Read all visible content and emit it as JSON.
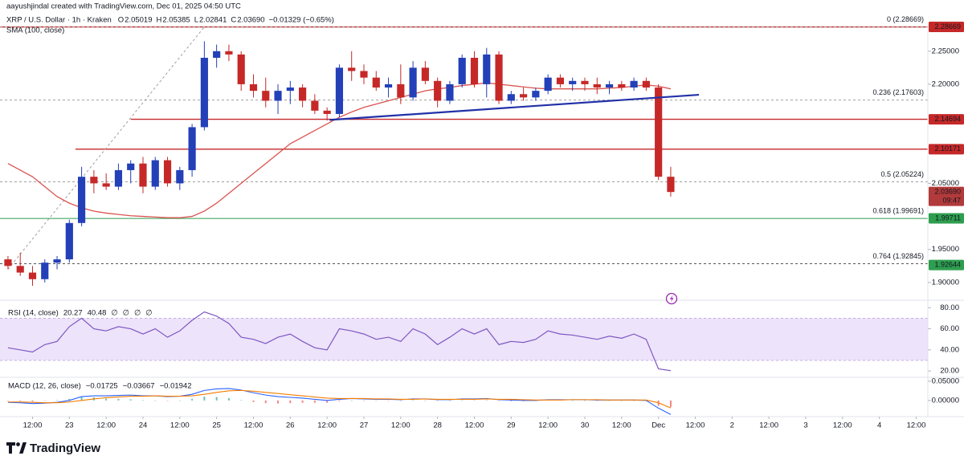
{
  "header": {
    "credit": "aayushjindal created with TradingView.com, Dec 01, 2025 04:50 UTC",
    "symbol": "XRP / U.S. Dollar · 1h · Kraken",
    "quote": [
      {
        "key": "O",
        "value": "2.05019"
      },
      {
        "key": "H",
        "value": "2.05385"
      },
      {
        "key": "L",
        "value": "2.02841"
      },
      {
        "key": "C",
        "value": "2.03690"
      }
    ],
    "change": "−0.01329 (−0.65%)"
  },
  "footer": {
    "brand": "TradingView"
  },
  "chart_data": [
    {
      "type": "candlestick",
      "up_color": "#2340b8",
      "down_color": "#c62828",
      "xlim": [
        -0.65,
        74.95
      ],
      "xticks": [
        {
          "value": 2,
          "label": "12:00"
        },
        {
          "value": 5,
          "label": "23"
        },
        {
          "value": 8,
          "label": "12:00"
        },
        {
          "value": 11,
          "label": "24"
        },
        {
          "value": 14,
          "label": "12:00"
        },
        {
          "value": 17,
          "label": "25"
        },
        {
          "value": 20,
          "label": "12:00"
        },
        {
          "value": 23,
          "label": "26"
        },
        {
          "value": 26,
          "label": "12:00"
        },
        {
          "value": 29,
          "label": "27"
        },
        {
          "value": 32,
          "label": "12:00"
        },
        {
          "value": 35,
          "label": "28"
        },
        {
          "value": 38,
          "label": "12:00"
        },
        {
          "value": 41,
          "label": "29"
        },
        {
          "value": 44,
          "label": "12:00"
        },
        {
          "value": 47,
          "label": "30"
        },
        {
          "value": 50,
          "label": "12:00"
        },
        {
          "value": 53,
          "label": "Dec"
        },
        {
          "value": 56,
          "label": "12:00"
        },
        {
          "value": 59,
          "label": "2"
        },
        {
          "value": 62,
          "label": "12:00"
        },
        {
          "value": 65,
          "label": "3"
        },
        {
          "value": 68,
          "label": "12:00"
        },
        {
          "value": 71,
          "label": "4"
        },
        {
          "value": 74,
          "label": "12:00"
        }
      ],
      "ylim": [
        1.878,
        2.291
      ],
      "yticks": [
        {
          "value": 2.25,
          "label": "2.25000"
        },
        {
          "value": 2.2,
          "label": "2.20000"
        },
        {
          "value": 2.05,
          "label": "2.05000"
        },
        {
          "value": 1.95,
          "label": "1.95000"
        },
        {
          "value": 1.9,
          "label": "1.90000"
        }
      ],
      "open": [
        1.935,
        1.925,
        1.915,
        1.905,
        1.93,
        1.935,
        1.99,
        2.06,
        2.05,
        2.045,
        2.07,
        2.08,
        2.045,
        2.085,
        2.05,
        2.07,
        2.135,
        2.24,
        2.25,
        2.245,
        2.2,
        2.19,
        2.175,
        2.19,
        2.195,
        2.175,
        2.16,
        2.155,
        2.225,
        2.22,
        2.21,
        2.195,
        2.2,
        2.18,
        2.225,
        2.205,
        2.175,
        2.2,
        2.24,
        2.2,
        2.245,
        2.175,
        2.185,
        2.18,
        2.19,
        2.21,
        2.2,
        2.205,
        2.2,
        2.195,
        2.2,
        2.195,
        2.205,
        2.195,
        2.06
      ],
      "high": [
        1.94,
        1.945,
        1.925,
        1.935,
        1.94,
        1.995,
        2.075,
        2.07,
        2.065,
        2.08,
        2.085,
        2.09,
        2.09,
        2.09,
        2.075,
        2.14,
        2.265,
        2.26,
        2.26,
        2.25,
        2.215,
        2.21,
        2.2,
        2.205,
        2.2,
        2.185,
        2.165,
        2.23,
        2.25,
        2.23,
        2.22,
        2.21,
        2.23,
        2.235,
        2.235,
        2.21,
        2.205,
        2.245,
        2.25,
        2.255,
        2.25,
        2.19,
        2.195,
        2.195,
        2.215,
        2.215,
        2.21,
        2.21,
        2.21,
        2.205,
        2.205,
        2.21,
        2.21,
        2.2,
        2.075
      ],
      "low": [
        1.92,
        1.91,
        1.895,
        1.9,
        1.92,
        1.93,
        1.985,
        2.035,
        2.04,
        2.04,
        2.05,
        2.035,
        2.04,
        2.045,
        2.04,
        2.06,
        2.13,
        2.225,
        2.235,
        2.19,
        2.18,
        2.165,
        2.155,
        2.17,
        2.165,
        2.155,
        2.145,
        2.15,
        2.205,
        2.2,
        2.19,
        2.18,
        2.17,
        2.175,
        2.2,
        2.165,
        2.17,
        2.195,
        2.195,
        2.18,
        2.17,
        2.17,
        2.175,
        2.175,
        2.185,
        2.195,
        2.19,
        2.19,
        2.185,
        2.185,
        2.19,
        2.19,
        2.19,
        2.055,
        2.03
      ],
      "close": [
        1.925,
        1.915,
        1.905,
        1.93,
        1.935,
        1.99,
        2.06,
        2.05,
        2.045,
        2.07,
        2.08,
        2.045,
        2.085,
        2.05,
        2.07,
        2.135,
        2.24,
        2.25,
        2.245,
        2.2,
        2.19,
        2.175,
        2.19,
        2.195,
        2.175,
        2.16,
        2.155,
        2.225,
        2.22,
        2.21,
        2.195,
        2.2,
        2.18,
        2.225,
        2.205,
        2.175,
        2.2,
        2.24,
        2.2,
        2.245,
        2.175,
        2.185,
        2.18,
        2.19,
        2.21,
        2.2,
        2.205,
        2.2,
        2.195,
        2.2,
        2.195,
        2.205,
        2.195,
        2.06,
        2.0369
      ],
      "series": [
        {
          "name": "SMA (100, close)",
          "color": "#d9534f",
          "values": [
            2.08,
            2.07,
            2.06,
            2.045,
            2.03,
            2.02,
            2.013,
            2.008,
            2.005,
            2.003,
            2.001,
            2.0,
            1.999,
            1.998,
            1.998,
            2.0,
            2.008,
            2.02,
            2.035,
            2.05,
            2.065,
            2.08,
            2.095,
            2.11,
            2.12,
            2.13,
            2.14,
            2.15,
            2.158,
            2.165,
            2.17,
            2.175,
            2.18,
            2.185,
            2.19,
            2.193,
            2.195,
            2.198,
            2.2,
            2.202,
            2.2,
            2.198,
            2.196,
            2.194,
            2.193,
            2.193,
            2.193,
            2.193,
            2.193,
            2.194,
            2.195,
            2.197,
            2.199,
            2.197,
            2.193
          ]
        }
      ],
      "lines": [
        {
          "value": 2.28669,
          "from": -0.65,
          "color": "#c62828"
        },
        {
          "value": 2.14694,
          "from": 10,
          "color": "#c62828"
        },
        {
          "value": 2.10171,
          "from": 5.5,
          "color": "#c62828"
        }
      ],
      "fib_levels": [
        {
          "value": 2.28669,
          "label": "0 (2.28669)",
          "color": "#9e9e9e"
        },
        {
          "value": 2.17603,
          "label": "0.236 (2.17603)",
          "color": "#9e9e9e"
        },
        {
          "value": 2.05224,
          "label": "0.5 (2.05224)",
          "color": "#9e9e9e"
        },
        {
          "value": 1.99691,
          "label": "0.618 (1.99691)",
          "color": "#2e9e4f"
        },
        {
          "value": 1.92845,
          "label": "0.764 (1.92845)",
          "color": "#555555"
        }
      ],
      "trendline": {
        "x": [
          26.2,
          56.3
        ],
        "y": [
          2.146,
          2.184
        ],
        "color": "#2231a8"
      },
      "fib_diagonal": {
        "x": [
          0,
          16
        ],
        "y": [
          1.92,
          2.28669
        ],
        "color": "#9e9e9e"
      },
      "price_labels": [
        {
          "value": 2.28669,
          "color": "#c62828"
        },
        {
          "value": 2.14694,
          "color": "#c62828"
        },
        {
          "value": 2.10171,
          "color": "#c62828"
        },
        {
          "value": 2.0369,
          "label": "2.03690",
          "sub": "09:47",
          "color": "#b23a3a"
        },
        {
          "value": 1.99711,
          "color": "#2e9e4f"
        },
        {
          "value": 1.92644,
          "color": "#2e9e4f"
        }
      ]
    },
    {
      "type": "line",
      "title": "RSI (14, close)",
      "legend": [
        {
          "text": "20.27",
          "color": "#7e57c2"
        },
        {
          "text": "40.48",
          "color": "#f5c242"
        },
        {
          "text": "∅",
          "color": "#555555"
        },
        {
          "text": "∅",
          "color": "#555555"
        },
        {
          "text": "∅",
          "color": "#555555"
        },
        {
          "text": "∅",
          "color": "#555555"
        }
      ],
      "ylim": [
        14,
        84
      ],
      "yticks": [
        {
          "value": 80,
          "label": "80.00"
        },
        {
          "value": 60,
          "label": "60.00"
        },
        {
          "value": 40,
          "label": "40.00"
        },
        {
          "value": 20,
          "label": "20.00"
        }
      ],
      "band": [
        30,
        70
      ],
      "band_color": "#ede3fa",
      "color": "#7e57c2",
      "values": [
        42,
        40,
        38,
        45,
        48,
        62,
        70,
        60,
        58,
        62,
        60,
        55,
        60,
        52,
        58,
        68,
        76,
        72,
        65,
        52,
        50,
        46,
        52,
        55,
        48,
        42,
        40,
        60,
        58,
        55,
        50,
        52,
        48,
        60,
        55,
        45,
        52,
        60,
        55,
        60,
        45,
        48,
        47,
        50,
        58,
        55,
        54,
        52,
        50,
        53,
        51,
        55,
        50,
        22,
        20.27
      ]
    },
    {
      "type": "macd",
      "title": "MACD (12, 26, close)",
      "legend": [
        {
          "text": "−0.01725",
          "color": "#c62828"
        },
        {
          "text": "−0.03667",
          "color": "#2962ff"
        },
        {
          "text": "−0.01942",
          "color": "#f57c00"
        }
      ],
      "ylim": [
        -0.04,
        0.056
      ],
      "yticks": [
        {
          "value": 0.05,
          "label": "0.05000"
        },
        {
          "value": 0,
          "label": "0.00000"
        }
      ],
      "histogram": [
        -0.001,
        -0.002,
        -0.003,
        -0.001,
        0.001,
        0.004,
        0.01,
        0.008,
        0.005,
        0.004,
        0.003,
        0.001,
        0.0,
        -0.001,
        0.0,
        0.004,
        0.01,
        0.009,
        0.006,
        0.001,
        -0.004,
        -0.007,
        -0.008,
        -0.007,
        -0.006,
        -0.006,
        -0.006,
        -0.002,
        0.0,
        -0.001,
        -0.001,
        -0.001,
        -0.001,
        0.001,
        0.0,
        -0.001,
        -0.001,
        0.001,
        0.001,
        0.001,
        -0.001,
        -0.002,
        -0.002,
        -0.001,
        0.001,
        0.001,
        0.0,
        0.0,
        -0.001,
        0.0,
        0.0,
        0.0,
        -0.001,
        -0.014,
        -0.01725
      ],
      "histogram_up_color": "#26a69a",
      "histogram_down_color": "#ef5350",
      "macd": {
        "color": "#2962ff",
        "values": [
          -0.005,
          -0.006,
          -0.008,
          -0.007,
          -0.005,
          0.0,
          0.01,
          0.012,
          0.012,
          0.013,
          0.014,
          0.012,
          0.012,
          0.01,
          0.011,
          0.016,
          0.026,
          0.03,
          0.031,
          0.027,
          0.02,
          0.014,
          0.01,
          0.008,
          0.006,
          0.003,
          0.0,
          0.003,
          0.005,
          0.004,
          0.003,
          0.003,
          0.002,
          0.004,
          0.004,
          0.002,
          0.002,
          0.004,
          0.004,
          0.005,
          0.002,
          0.001,
          0.0,
          0.0,
          0.002,
          0.002,
          0.002,
          0.002,
          0.001,
          0.001,
          0.001,
          0.001,
          0.0,
          -0.02,
          -0.03667
        ]
      },
      "signal": {
        "color": "#f57c00",
        "values": [
          -0.004,
          -0.004,
          -0.005,
          -0.006,
          -0.006,
          -0.004,
          0.0,
          0.004,
          0.007,
          0.009,
          0.011,
          0.011,
          0.012,
          0.011,
          0.011,
          0.012,
          0.016,
          0.021,
          0.025,
          0.026,
          0.024,
          0.021,
          0.018,
          0.015,
          0.012,
          0.009,
          0.006,
          0.005,
          0.005,
          0.005,
          0.004,
          0.004,
          0.003,
          0.003,
          0.004,
          0.003,
          0.003,
          0.003,
          0.003,
          0.004,
          0.003,
          0.003,
          0.002,
          0.001,
          0.001,
          0.001,
          0.002,
          0.002,
          0.002,
          0.001,
          0.001,
          0.001,
          0.001,
          -0.006,
          -0.01942
        ]
      }
    }
  ]
}
